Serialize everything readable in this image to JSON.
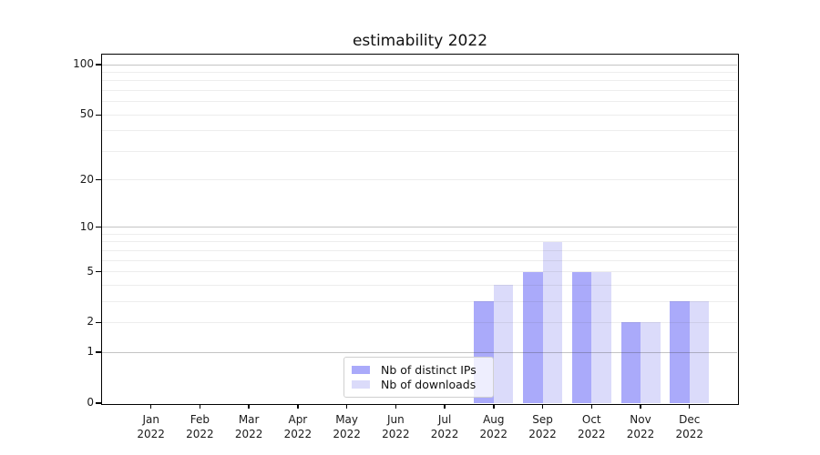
{
  "chart_data": {
    "type": "bar",
    "title": "estimability 2022",
    "categories": [
      "Jan 2022",
      "Feb 2022",
      "Mar 2022",
      "Apr 2022",
      "May 2022",
      "Jun 2022",
      "Jul 2022",
      "Aug 2022",
      "Sep 2022",
      "Oct 2022",
      "Nov 2022",
      "Dec 2022"
    ],
    "x_tick_months": [
      "Jan",
      "Feb",
      "Mar",
      "Apr",
      "May",
      "Jun",
      "Jul",
      "Aug",
      "Sep",
      "Oct",
      "Nov",
      "Dec"
    ],
    "x_tick_year": "2022",
    "series": [
      {
        "name": "Nb of distinct IPs",
        "color": "#aaaafa",
        "values": [
          0,
          0,
          0,
          0,
          0,
          0,
          0,
          3,
          5,
          5,
          2,
          3
        ]
      },
      {
        "name": "Nb of downloads",
        "color": "#dbdbfa",
        "values": [
          0,
          0,
          0,
          0,
          0,
          0,
          0,
          4,
          8,
          5,
          2,
          3
        ]
      }
    ],
    "y_scale": "log1p",
    "ylim": [
      0,
      115
    ],
    "y_tick_values": [
      0,
      1,
      2,
      5,
      10,
      20,
      50,
      100
    ],
    "y_tick_labels": [
      "0",
      "1",
      "2",
      "5",
      "10",
      "20",
      "50",
      "100"
    ],
    "y_major_gridlines": [
      1,
      10,
      100
    ],
    "y_minor_gridlines": [
      2,
      3,
      4,
      5,
      6,
      7,
      8,
      9,
      20,
      30,
      40,
      50,
      60,
      70,
      80,
      90
    ],
    "grid": true,
    "legend_position": "lower-center"
  },
  "colors": {
    "series_dark": "#aaaafa",
    "series_light": "#dbdbfa",
    "spine": "#000000",
    "text": "#1a1a1a",
    "background": "#ffffff"
  }
}
